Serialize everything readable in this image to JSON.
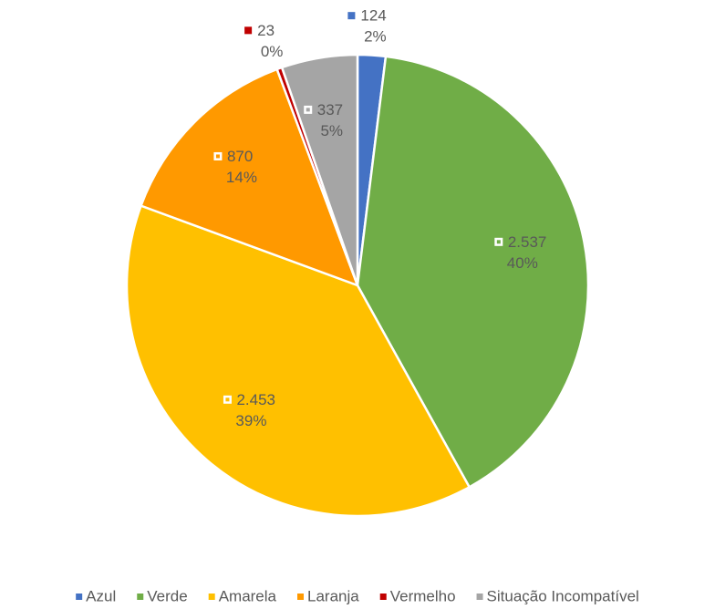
{
  "chart_data": {
    "type": "pie",
    "categories": [
      "Azul",
      "Verde",
      "Amarela",
      "Laranja",
      "Vermelho",
      "Situação Incompatível"
    ],
    "values": [
      124,
      2537,
      2453,
      870,
      23,
      337
    ],
    "value_labels": [
      "124",
      "2.537",
      "2.453",
      "870",
      "23",
      "337"
    ],
    "percent_labels": [
      "2%",
      "40%",
      "39%",
      "14%",
      "0%",
      "5%"
    ],
    "colors": [
      "#4472c4",
      "#70ad47",
      "#ffc000",
      "#ff9900",
      "#c00000",
      "#a5a5a5"
    ],
    "legend": "bottom"
  }
}
